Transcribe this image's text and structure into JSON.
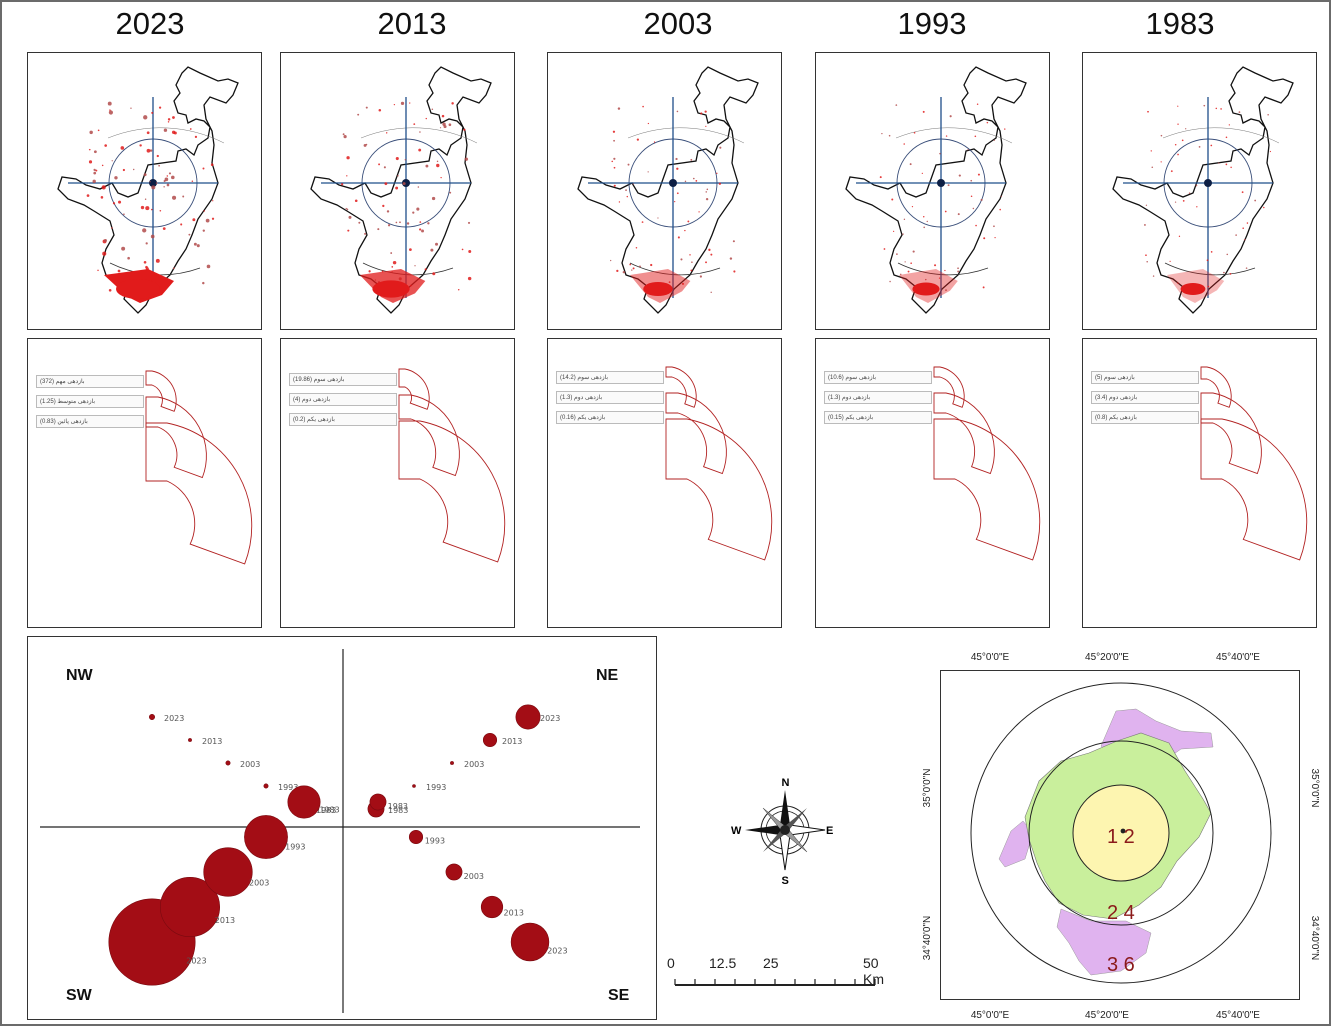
{
  "years": [
    "2023",
    "2013",
    "2003",
    "1993",
    "1983"
  ],
  "legends": [
    {
      "year": "2023",
      "items": [
        "بازدهی مهم (372)",
        "بازدهی متوسط (1.25)",
        "بازدهی پائین (0.83)"
      ]
    },
    {
      "year": "2013",
      "items": [
        "بازدهی سوم (19.86)",
        "بازدهی دوم (4)",
        "بازدهی یکم (0.2)"
      ]
    },
    {
      "year": "2003",
      "items": [
        "بازدهی سوم (14.2)",
        "بازدهی دوم (1.3)",
        "بازدهی یکم (0.16)"
      ]
    },
    {
      "year": "1993",
      "items": [
        "بازدهی سوم (10.6)",
        "بازدهی دوم (1.3)",
        "بازدهی یکم (0.15)"
      ]
    },
    {
      "year": "1983",
      "items": [
        "بازدهی سوم (5)",
        "بازدهی دوم (3.4)",
        "بازدهی یکم (0.8)"
      ]
    }
  ],
  "quadrants": {
    "nw": "NW",
    "ne": "NE",
    "sw": "SW",
    "se": "SE"
  },
  "quadrant_series": {
    "NW": [
      {
        "year": "2023",
        "size": 1
      },
      {
        "year": "2013",
        "size": 0.6
      },
      {
        "year": "2003",
        "size": 0.8
      },
      {
        "year": "1993",
        "size": 0.8
      },
      {
        "year": "1983",
        "size": 2
      }
    ],
    "NE": [
      {
        "year": "2023",
        "size": 4.5
      },
      {
        "year": "2013",
        "size": 2.5
      },
      {
        "year": "2003",
        "size": 0.6
      },
      {
        "year": "1993",
        "size": 0.5
      },
      {
        "year": "1983",
        "size": 3
      }
    ],
    "SW": [
      {
        "year": "2023",
        "size": 16
      },
      {
        "year": "2013",
        "size": 11
      },
      {
        "year": "2003",
        "size": 9
      },
      {
        "year": "1993",
        "size": 8
      },
      {
        "year": "1983",
        "size": 6
      }
    ],
    "SE": [
      {
        "year": "2023",
        "size": 7
      },
      {
        "year": "2013",
        "size": 4
      },
      {
        "year": "2003",
        "size": 3
      },
      {
        "year": "1993",
        "size": 2.5
      },
      {
        "year": "1983",
        "size": 3
      }
    ]
  },
  "compass": {
    "n": "N",
    "s": "S",
    "e": "E",
    "w": "W"
  },
  "scale": {
    "ticks": [
      "0",
      "12.5",
      "25",
      "50 Km"
    ]
  },
  "inset": {
    "top_coords": [
      "45°0'0\"E",
      "45°20'0\"E",
      "45°40'0\"E"
    ],
    "bottom_coords": [
      "45°0'0\"E",
      "45°20'0\"E",
      "45°40'0\"E"
    ],
    "left_coords": [
      "35°0'0\"N",
      "34°40'0\"N"
    ],
    "right_coords": [
      "35°0'0\"N",
      "34°40'0\"N"
    ],
    "zones": [
      "1 2",
      "2 4",
      "3 6"
    ],
    "colors": {
      "inner": "#fdf5b0",
      "middle": "#c9ef9c",
      "outer": "#e0b3ef"
    }
  },
  "colors": {
    "red": "#e11b1b",
    "dark_red": "#a30d15",
    "axis_blue": "#1f4f8a"
  }
}
